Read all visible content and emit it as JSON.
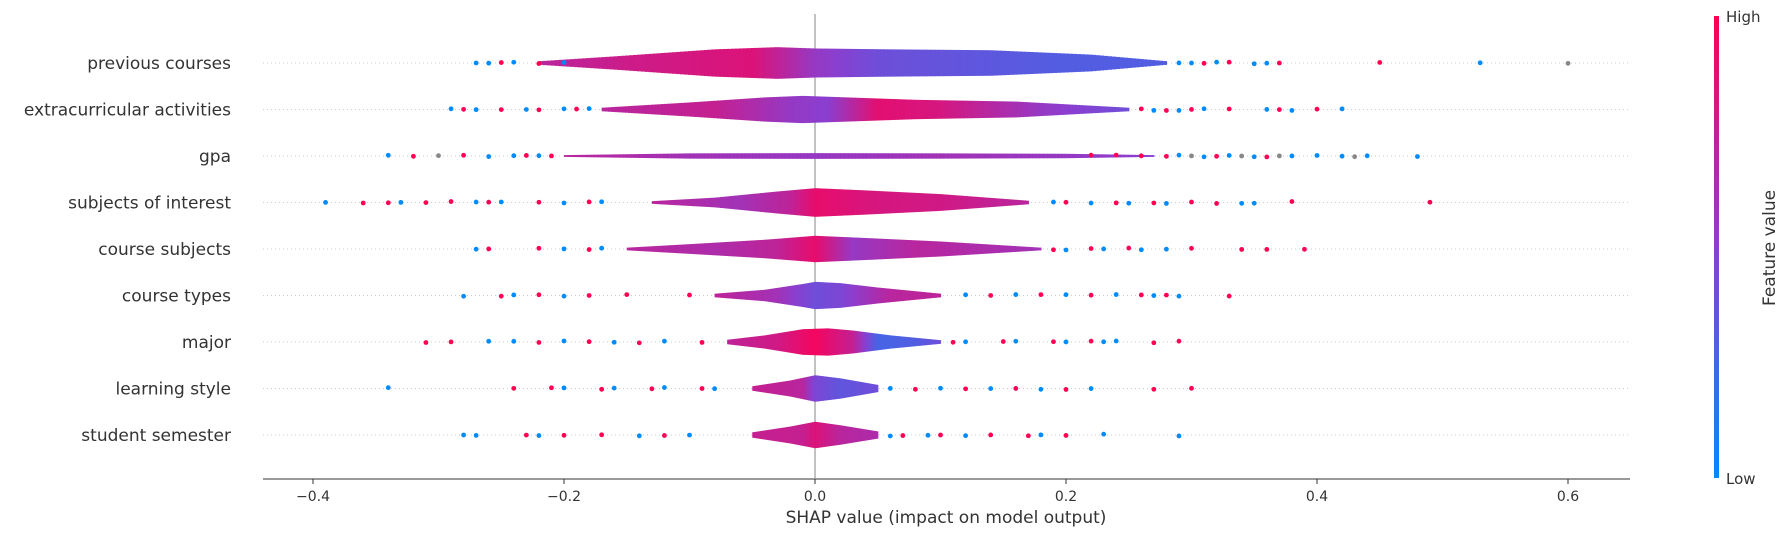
{
  "chart_data": {
    "type": "violin",
    "title": "",
    "xlabel": "SHAP value (impact on model output)",
    "ylabel": "",
    "xlim": [
      -0.44,
      0.65
    ],
    "xticks": [
      -0.4,
      -0.2,
      0.0,
      0.2,
      0.4,
      0.6
    ],
    "xtick_labels": [
      "−0.4",
      "−0.2",
      "0.0",
      "0.2",
      "0.4",
      "0.6"
    ],
    "grid": "horizontal dotted row lines",
    "colors": {
      "low": "#008bfb",
      "high": "#ff0052",
      "zero_line": "#999999"
    },
    "colorbar": {
      "label": "Feature value",
      "high_label": "High",
      "low_label": "Low"
    },
    "features": [
      {
        "name": "previous courses",
        "violin_range": [
          -0.22,
          0.28
        ],
        "profile": [
          [
            -0.22,
            0.08
          ],
          [
            -0.16,
            0.3
          ],
          [
            -0.08,
            0.62
          ],
          [
            -0.03,
            0.72
          ],
          [
            0.0,
            0.66
          ],
          [
            0.06,
            0.62
          ],
          [
            0.14,
            0.58
          ],
          [
            0.22,
            0.38
          ],
          [
            0.28,
            0.08
          ]
        ],
        "colors": [
          [
            -0.22,
            0.7
          ],
          [
            -0.15,
            0.78
          ],
          [
            -0.05,
            0.85
          ],
          [
            0.0,
            0.55
          ],
          [
            0.05,
            0.4
          ],
          [
            0.12,
            0.35
          ],
          [
            0.2,
            0.3
          ],
          [
            0.28,
            0.3
          ]
        ],
        "points_low": [
          -0.27,
          -0.26,
          -0.24,
          -0.2,
          0.29,
          0.3,
          0.32,
          0.35,
          0.36,
          0.53
        ],
        "points_high": [
          -0.25,
          -0.22,
          0.31,
          0.33,
          0.37,
          0.45
        ],
        "points_mid": [
          0.6
        ]
      },
      {
        "name": "extracurricular activities",
        "violin_range": [
          -0.17,
          0.25
        ],
        "profile": [
          [
            -0.17,
            0.08
          ],
          [
            -0.1,
            0.32
          ],
          [
            -0.04,
            0.55
          ],
          [
            -0.01,
            0.62
          ],
          [
            0.02,
            0.56
          ],
          [
            0.08,
            0.44
          ],
          [
            0.16,
            0.36
          ],
          [
            0.25,
            0.08
          ]
        ],
        "colors": [
          [
            -0.17,
            0.7
          ],
          [
            -0.08,
            0.75
          ],
          [
            -0.02,
            0.55
          ],
          [
            0.01,
            0.5
          ],
          [
            0.05,
            0.88
          ],
          [
            0.1,
            0.82
          ],
          [
            0.18,
            0.55
          ],
          [
            0.25,
            0.4
          ]
        ],
        "points_low": [
          -0.29,
          -0.27,
          -0.23,
          -0.2,
          -0.18,
          0.27,
          0.29,
          0.31,
          0.36,
          0.38,
          0.42
        ],
        "points_high": [
          -0.28,
          -0.25,
          -0.22,
          -0.19,
          0.26,
          0.28,
          0.3,
          0.33,
          0.37,
          0.4
        ]
      },
      {
        "name": "gpa",
        "violin_range": [
          -0.2,
          0.27
        ],
        "profile": [
          [
            -0.2,
            0.04
          ],
          [
            -0.1,
            0.12
          ],
          [
            0.0,
            0.13
          ],
          [
            0.1,
            0.12
          ],
          [
            0.2,
            0.1
          ],
          [
            0.27,
            0.04
          ]
        ],
        "colors": [
          [
            -0.2,
            0.7
          ],
          [
            -0.1,
            0.6
          ],
          [
            0.0,
            0.55
          ],
          [
            0.1,
            0.6
          ],
          [
            0.2,
            0.55
          ],
          [
            0.27,
            0.5
          ]
        ],
        "points_low": [
          -0.34,
          -0.26,
          -0.24,
          -0.22,
          0.29,
          0.31,
          0.33,
          0.35,
          0.38,
          0.4,
          0.42,
          0.44,
          0.48
        ],
        "points_high": [
          -0.32,
          -0.28,
          -0.23,
          -0.21,
          0.22,
          0.24,
          0.26,
          0.28,
          0.32,
          0.36
        ],
        "points_mid": [
          -0.3,
          0.3,
          0.34,
          0.37,
          0.43
        ]
      },
      {
        "name": "subjects of interest",
        "violin_range": [
          -0.13,
          0.17
        ],
        "profile": [
          [
            -0.13,
            0.06
          ],
          [
            -0.08,
            0.22
          ],
          [
            -0.03,
            0.5
          ],
          [
            0.0,
            0.65
          ],
          [
            0.04,
            0.55
          ],
          [
            0.1,
            0.38
          ],
          [
            0.17,
            0.08
          ]
        ],
        "colors": [
          [
            -0.13,
            0.7
          ],
          [
            -0.06,
            0.6
          ],
          [
            -0.02,
            0.72
          ],
          [
            0.0,
            0.9
          ],
          [
            0.05,
            0.82
          ],
          [
            0.1,
            0.8
          ],
          [
            0.17,
            0.7
          ]
        ],
        "points_low": [
          -0.39,
          -0.33,
          -0.27,
          -0.25,
          -0.2,
          -0.17,
          0.19,
          0.22,
          0.25,
          0.28,
          0.34,
          0.35
        ],
        "points_high": [
          -0.36,
          -0.34,
          -0.31,
          -0.29,
          -0.26,
          -0.22,
          -0.18,
          0.2,
          0.24,
          0.27,
          0.3,
          0.32,
          0.38,
          0.49
        ]
      },
      {
        "name": "course subjects",
        "violin_range": [
          -0.15,
          0.18
        ],
        "profile": [
          [
            -0.15,
            0.06
          ],
          [
            -0.1,
            0.22
          ],
          [
            -0.04,
            0.42
          ],
          [
            0.0,
            0.6
          ],
          [
            0.04,
            0.5
          ],
          [
            0.1,
            0.34
          ],
          [
            0.18,
            0.06
          ]
        ],
        "colors": [
          [
            -0.15,
            0.7
          ],
          [
            -0.08,
            0.65
          ],
          [
            -0.03,
            0.72
          ],
          [
            0.0,
            0.9
          ],
          [
            0.03,
            0.55
          ],
          [
            0.08,
            0.7
          ],
          [
            0.18,
            0.6
          ]
        ],
        "points_low": [
          -0.27,
          -0.2,
          -0.17,
          0.2,
          0.23,
          0.26,
          0.28
        ],
        "points_high": [
          -0.26,
          -0.22,
          -0.18,
          0.19,
          0.22,
          0.25,
          0.3,
          0.34,
          0.36,
          0.39
        ]
      },
      {
        "name": "course types",
        "violin_range": [
          -0.08,
          0.1
        ],
        "profile": [
          [
            -0.08,
            0.08
          ],
          [
            -0.04,
            0.26
          ],
          [
            -0.01,
            0.52
          ],
          [
            0.0,
            0.62
          ],
          [
            0.02,
            0.56
          ],
          [
            0.05,
            0.36
          ],
          [
            0.1,
            0.08
          ]
        ],
        "colors": [
          [
            -0.08,
            0.72
          ],
          [
            -0.03,
            0.6
          ],
          [
            0.0,
            0.4
          ],
          [
            0.02,
            0.45
          ],
          [
            0.06,
            0.7
          ],
          [
            0.1,
            0.72
          ]
        ],
        "points_low": [
          -0.28,
          -0.24,
          -0.2,
          0.12,
          0.16,
          0.2,
          0.24,
          0.27,
          0.29
        ],
        "points_high": [
          -0.25,
          -0.22,
          -0.18,
          -0.15,
          -0.1,
          0.14,
          0.18,
          0.22,
          0.26,
          0.28,
          0.33
        ]
      },
      {
        "name": "major",
        "violin_range": [
          -0.07,
          0.1
        ],
        "profile": [
          [
            -0.07,
            0.1
          ],
          [
            -0.04,
            0.3
          ],
          [
            -0.01,
            0.58
          ],
          [
            0.01,
            0.62
          ],
          [
            0.03,
            0.52
          ],
          [
            0.06,
            0.3
          ],
          [
            0.1,
            0.08
          ]
        ],
        "colors": [
          [
            -0.07,
            0.72
          ],
          [
            -0.03,
            0.8
          ],
          [
            0.0,
            0.95
          ],
          [
            0.03,
            0.75
          ],
          [
            0.05,
            0.25
          ],
          [
            0.08,
            0.3
          ],
          [
            0.1,
            0.4
          ]
        ],
        "points_low": [
          -0.26,
          -0.24,
          -0.2,
          -0.16,
          -0.12,
          0.12,
          0.16,
          0.2,
          0.23,
          0.24
        ],
        "points_high": [
          -0.31,
          -0.29,
          -0.22,
          -0.18,
          -0.14,
          -0.09,
          0.11,
          0.15,
          0.19,
          0.22,
          0.27,
          0.29
        ]
      },
      {
        "name": "learning style",
        "violin_range": [
          -0.05,
          0.05
        ],
        "profile": [
          [
            -0.05,
            0.1
          ],
          [
            -0.02,
            0.36
          ],
          [
            0.0,
            0.6
          ],
          [
            0.02,
            0.46
          ],
          [
            0.05,
            0.16
          ]
        ],
        "colors": [
          [
            -0.05,
            0.75
          ],
          [
            -0.01,
            0.7
          ],
          [
            0.0,
            0.45
          ],
          [
            0.02,
            0.35
          ],
          [
            0.05,
            0.4
          ]
        ],
        "points_low": [
          -0.34,
          -0.2,
          -0.16,
          -0.12,
          -0.08,
          0.06,
          0.1,
          0.14,
          0.18,
          0.22
        ],
        "points_high": [
          -0.24,
          -0.21,
          -0.17,
          -0.13,
          -0.09,
          0.08,
          0.12,
          0.16,
          0.2,
          0.27,
          0.3
        ]
      },
      {
        "name": "student semester",
        "violin_range": [
          -0.05,
          0.05
        ],
        "profile": [
          [
            -0.05,
            0.12
          ],
          [
            -0.02,
            0.38
          ],
          [
            0.0,
            0.6
          ],
          [
            0.02,
            0.44
          ],
          [
            0.05,
            0.16
          ]
        ],
        "colors": [
          [
            -0.05,
            0.75
          ],
          [
            -0.01,
            0.75
          ],
          [
            0.0,
            0.85
          ],
          [
            0.02,
            0.7
          ],
          [
            0.05,
            0.65
          ]
        ],
        "points_low": [
          -0.28,
          -0.27,
          -0.22,
          -0.14,
          -0.1,
          0.06,
          0.09,
          0.12,
          0.18,
          0.23,
          0.29
        ],
        "points_high": [
          -0.23,
          -0.2,
          -0.17,
          -0.12,
          0.07,
          0.1,
          0.14,
          0.17,
          0.2
        ]
      }
    ]
  }
}
